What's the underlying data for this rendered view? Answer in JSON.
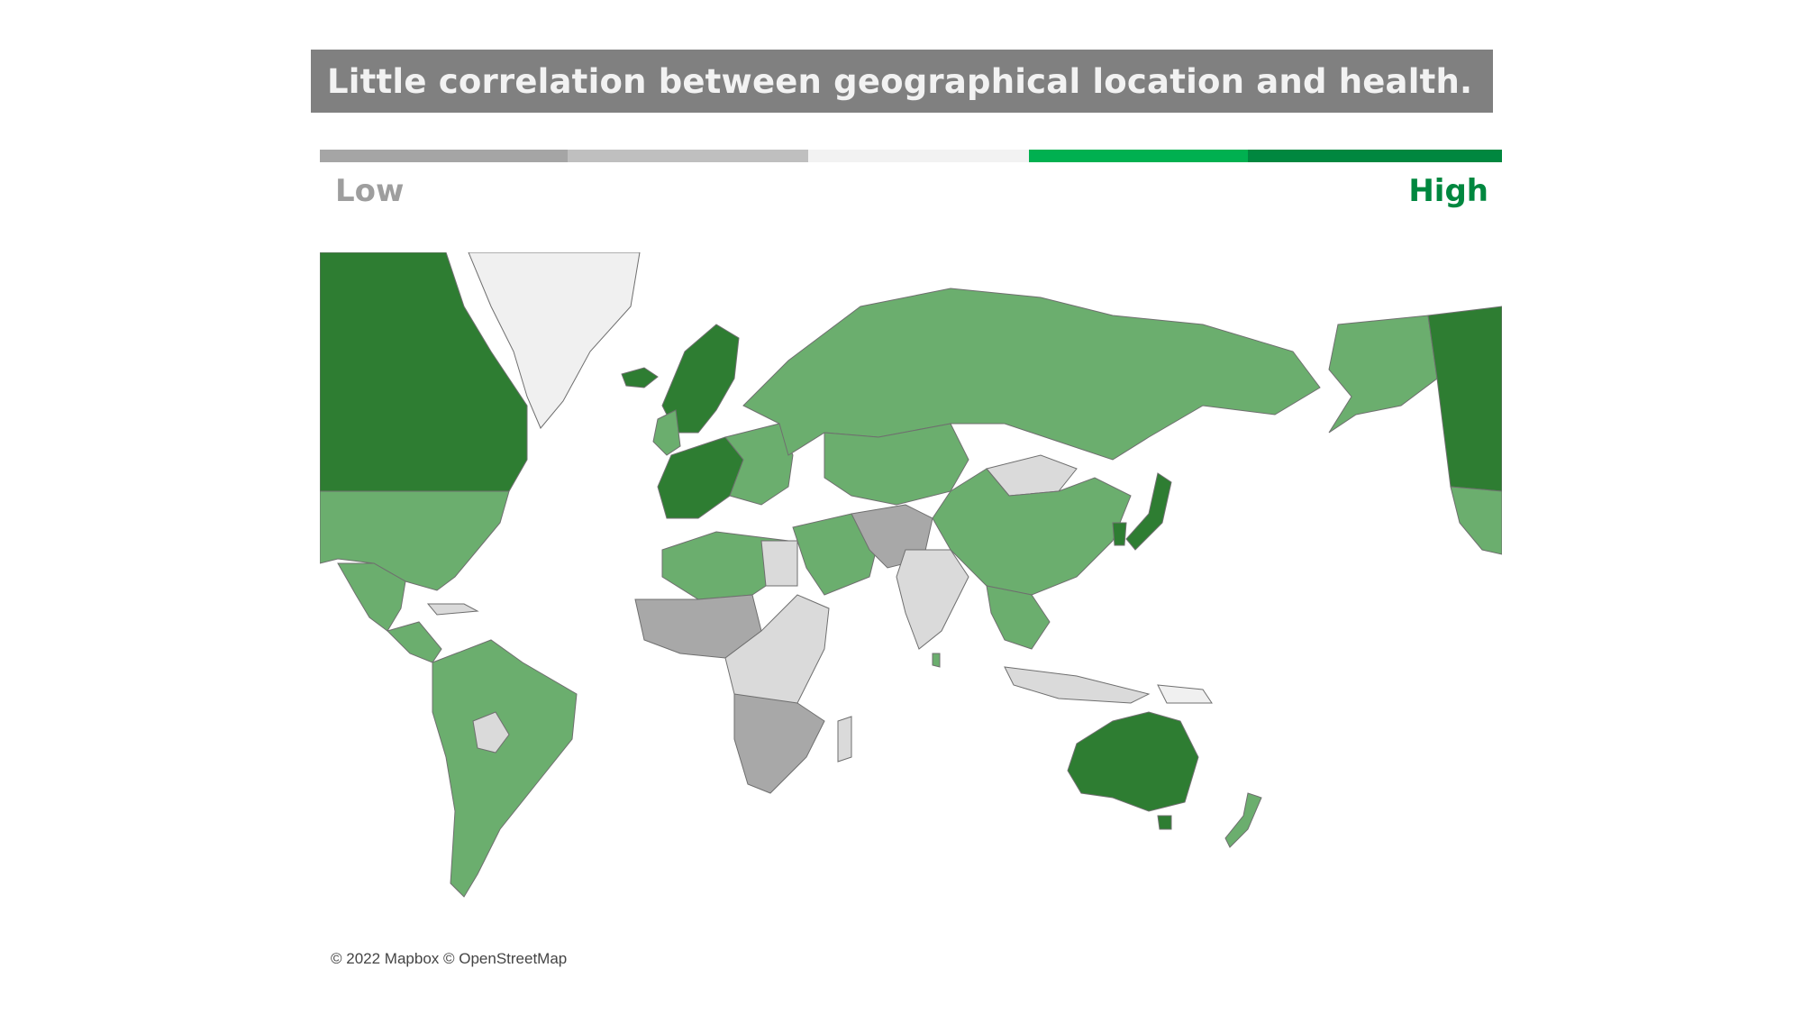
{
  "title": "Little correlation between geographical location and health.",
  "legend": {
    "low_label": "Low",
    "high_label": "High",
    "low_color": "#9e9e9e",
    "high_color": "#00873f",
    "scale_colors": [
      "#a5a5a5",
      "#bfbfbf",
      "#f2f2f2",
      "#00b050",
      "#00873f"
    ]
  },
  "map": {
    "category_colors": {
      "highest": "#2e7d32",
      "high": "#6bae6e",
      "no_data": "#f0f0f0",
      "mid_low": "#dadada",
      "low": "#a8a8a8"
    },
    "credit": "© 2022 Mapbox © OpenStreetMap"
  }
}
